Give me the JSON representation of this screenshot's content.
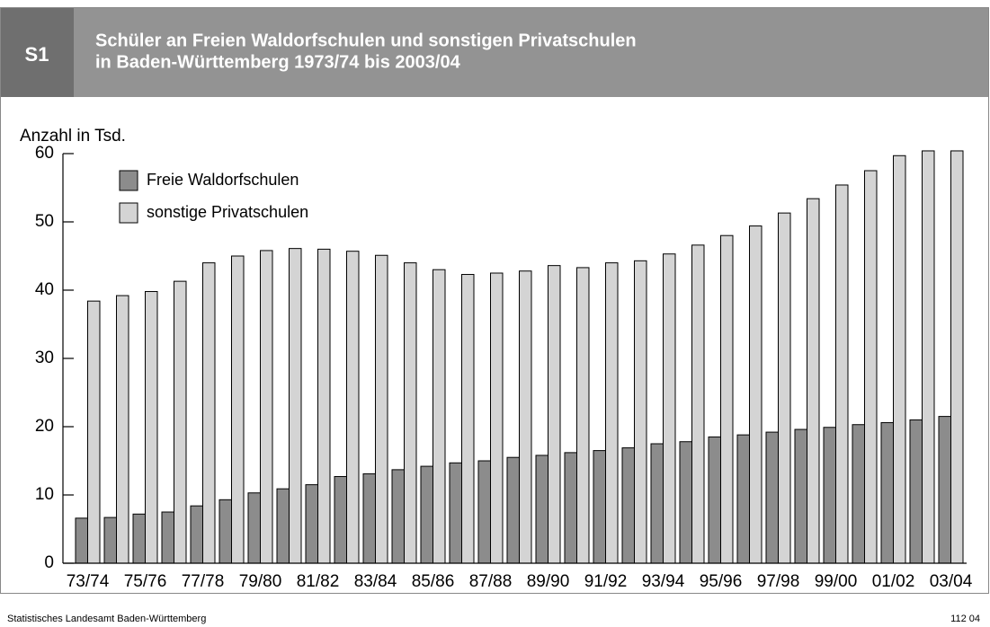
{
  "header": {
    "badge": "S1",
    "title_lines": [
      "Schüler an Freien Waldorfschulen und sonstigen Privatschulen",
      "in Baden-Württemberg 1973/74 bis 2003/04"
    ]
  },
  "chart_data": {
    "type": "bar",
    "y_label": "Anzahl in Tsd.",
    "categories": [
      "73/74",
      null,
      "75/76",
      null,
      "77/78",
      null,
      "79/80",
      null,
      "81/82",
      null,
      "83/84",
      null,
      "85/86",
      null,
      "87/88",
      null,
      "89/90",
      null,
      "91/92",
      null,
      "93/94",
      null,
      "95/96",
      null,
      "97/98",
      null,
      "99/00",
      null,
      "01/02",
      null,
      "03/04"
    ],
    "series": [
      {
        "name": "Freie Waldorfschulen",
        "color": "#8c8c8c",
        "values": [
          6.6,
          6.7,
          7.2,
          7.5,
          8.4,
          9.3,
          10.3,
          10.9,
          11.5,
          12.7,
          13.1,
          13.7,
          14.2,
          14.7,
          15.0,
          15.5,
          15.8,
          16.2,
          16.5,
          16.9,
          17.5,
          17.8,
          18.5,
          18.8,
          19.2,
          19.6,
          19.9,
          20.3,
          20.6,
          21.0,
          21.5
        ]
      },
      {
        "name": "sonstige Privatschulen",
        "color": "#d4d4d4",
        "values": [
          38.4,
          39.2,
          39.8,
          41.3,
          44.0,
          45.0,
          45.8,
          46.1,
          46.0,
          45.7,
          45.1,
          44.0,
          43.0,
          42.3,
          42.5,
          42.8,
          43.6,
          43.3,
          44.0,
          44.3,
          45.3,
          46.6,
          48.0,
          49.4,
          51.3,
          53.4,
          55.4,
          57.5,
          59.7,
          60.4,
          60.4
        ]
      }
    ],
    "ylim": [
      0,
      60
    ],
    "yticks": [
      0,
      10,
      20,
      30,
      40,
      50,
      60
    ],
    "legend": "upper left"
  },
  "footer": {
    "source": "Statistisches Landesamt Baden-Württemberg",
    "code": "112 04"
  }
}
